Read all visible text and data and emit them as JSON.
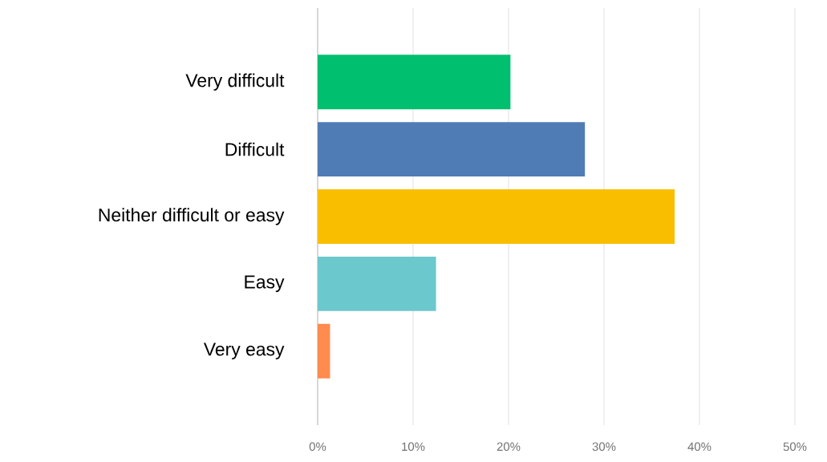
{
  "chart_data": {
    "type": "bar",
    "orientation": "horizontal",
    "categories": [
      "Very difficult",
      "Difficult",
      "Neither difficult or easy",
      "Easy",
      "Very easy"
    ],
    "values": [
      20.2,
      28.0,
      37.4,
      12.4,
      1.3
    ],
    "colors": [
      "#00bf6f",
      "#507cb6",
      "#f9be00",
      "#6bc8cd",
      "#ff8b4f"
    ],
    "xlim": [
      0,
      50
    ],
    "xticks": [
      {
        "value": 0,
        "label": "0%"
      },
      {
        "value": 10,
        "label": "10%"
      },
      {
        "value": 20,
        "label": "20%"
      },
      {
        "value": 30,
        "label": "30%"
      },
      {
        "value": 40,
        "label": "40%"
      },
      {
        "value": 50,
        "label": "50%"
      }
    ],
    "grid": "x"
  }
}
